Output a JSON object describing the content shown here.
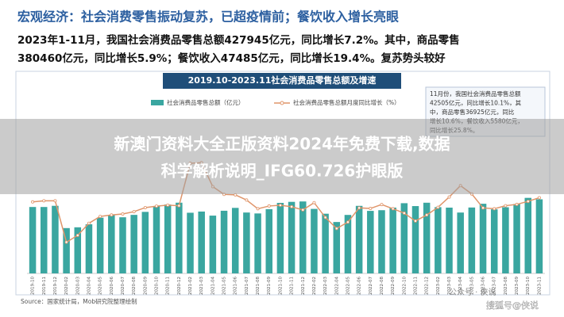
{
  "header": {
    "title": "宏观经济：社会消费零售振动复苏，已超疫情前；餐饮收入增长亮眼",
    "summary": [
      "2023年1-11月，我国社会消费品零售总额427945亿元，同比增长7.2%。其中，商品零售",
      "380460亿元，同比增长5.9%；餐饮收入47485亿元，同比增长19.4%。复苏势头较好"
    ]
  },
  "chart_data": {
    "type": "bar",
    "title": "2019.10-2023.11社会消费品零售总额及增速",
    "categories": [
      "2019-10",
      "2019-11",
      "2019-12",
      "2020-02",
      "2020-03",
      "2020-04",
      "2020-05",
      "2020-06",
      "2020-07",
      "2020-08",
      "2020-09",
      "2020-10",
      "2020-11",
      "2020-12",
      "2021-02",
      "2021-03",
      "2021-04",
      "2021-05",
      "2021-06",
      "2021-07",
      "2021-08",
      "2021-09",
      "2021-10",
      "2021-11",
      "2021-12",
      "2022-02",
      "2022-03",
      "2022-04",
      "2022-05",
      "2022-06",
      "2022-07",
      "2022-08",
      "2022-09",
      "2022-10",
      "2022-11",
      "2022-12",
      "2023-02",
      "2023-03",
      "2023-04",
      "2023-05",
      "2023-06",
      "2023-07",
      "2023-08",
      "2023-09",
      "2023-10",
      "2023-11"
    ],
    "series": [
      {
        "name": "社会消费品零售总额（亿元）",
        "color": "#3aa6a0",
        "values": [
          38104,
          38094,
          38777,
          26000,
          26450,
          28178,
          31973,
          33526,
          32203,
          33571,
          35295,
          38576,
          39514,
          40566,
          34800,
          35484,
          33153,
          35945,
          37586,
          34925,
          34395,
          36833,
          40454,
          41043,
          41269,
          37000,
          34233,
          29483,
          33547,
          38742,
          35870,
          36258,
          37745,
          40271,
          38615,
          40542,
          38000,
          37736,
          34910,
          37803,
          39951,
          36761,
          37933,
          39826,
          43333,
          42505
        ]
      },
      {
        "name": "社会消费品零售总额月度同比增长（%）",
        "color": "#e0956a",
        "type": "line",
        "axis": "y2",
        "values": [
          7.2,
          8.0,
          8.0,
          -20.5,
          -15.8,
          -7.5,
          -2.8,
          -1.8,
          -1.1,
          0.5,
          3.3,
          4.3,
          5.0,
          4.6,
          33.8,
          34.2,
          17.7,
          12.4,
          12.1,
          8.5,
          2.5,
          4.4,
          4.9,
          3.9,
          1.7,
          6.7,
          -3.5,
          -11.1,
          -6.7,
          3.1,
          2.7,
          5.4,
          2.5,
          -0.5,
          -5.9,
          -1.8,
          3.5,
          10.6,
          18.4,
          12.7,
          3.1,
          2.5,
          4.6,
          5.5,
          7.6,
          10.1
        ]
      }
    ],
    "ylim": [
      0,
      50000
    ],
    "y2lim": [
      -42,
      42
    ],
    "annotation": [
      "11月份，我国社会消费品零售总额",
      "42505亿元，同比增长10.1%，其",
      "中，商品零售36925亿元，同比",
      "增长10.6%，餐饮收入5580亿元，",
      "同比增长25.8%。"
    ]
  },
  "banner": [
    "新澳门资料大全正版资料2024年免费下载,数据",
    "科学解析说明_IFG60.726护眼版"
  ],
  "source": "Source：国家统计局，Mob研究院整理绘制",
  "watermarks": [
    "公众号 · 侠说",
    "搜狐号@侠说"
  ]
}
